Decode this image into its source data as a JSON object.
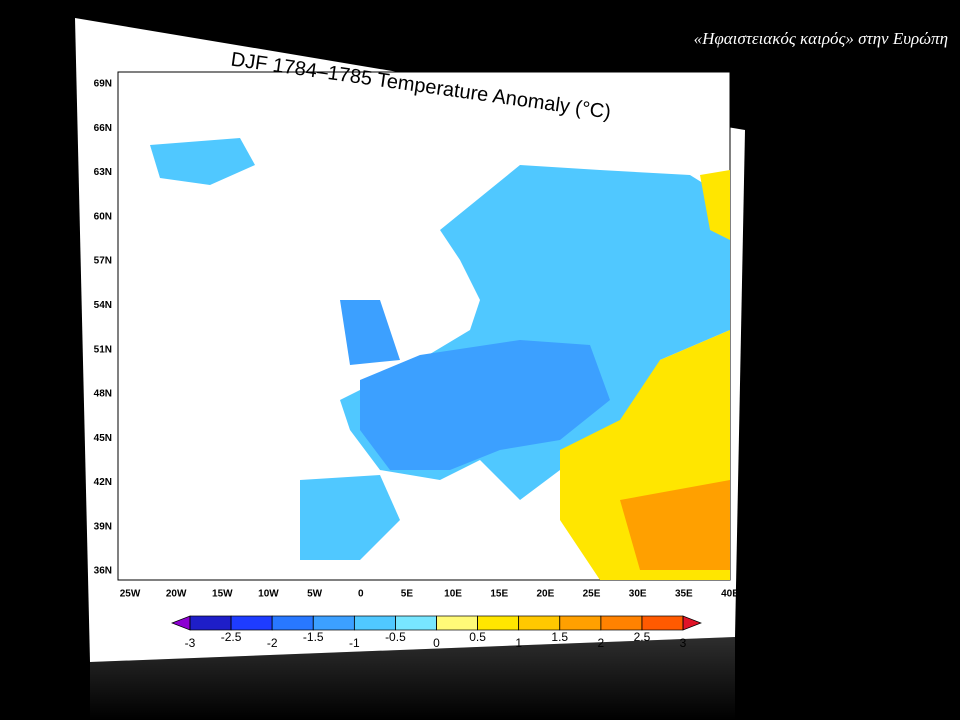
{
  "slide_title": "«Ηφαιστειακός καιρός» στην Ευρώπη",
  "map": {
    "title": "DJF 1784–1785 Temperature Anomaly (°C)",
    "lat_labels": [
      "69N",
      "66N",
      "63N",
      "60N",
      "57N",
      "54N",
      "51N",
      "48N",
      "45N",
      "42N",
      "39N",
      "36N"
    ],
    "lon_labels": [
      "25W",
      "20W",
      "15W",
      "10W",
      "5W",
      "0",
      "5E",
      "10E",
      "15E",
      "20E",
      "25E",
      "30E",
      "35E",
      "40E"
    ]
  },
  "colorbar": {
    "ticks": [
      -3,
      -2.5,
      -2,
      -1.5,
      -1,
      -0.5,
      0,
      0.5,
      1,
      1.5,
      2,
      2.5,
      3
    ],
    "colors": [
      "#1e1ec8",
      "#1e3cff",
      "#2878ff",
      "#3ca0ff",
      "#50c8ff",
      "#78e6ff",
      "#fffa78",
      "#ffe600",
      "#ffc800",
      "#ffa000",
      "#ff8200",
      "#ff5a00"
    ],
    "under_color": "#8c00d2",
    "over_color": "#e01428"
  }
}
